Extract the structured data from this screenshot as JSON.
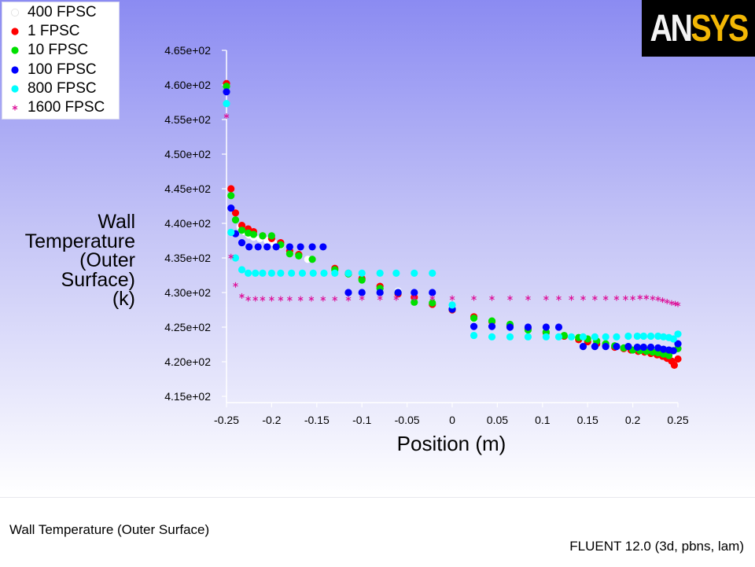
{
  "logo": {
    "text_main": "AN",
    "text_accent": "SYS"
  },
  "footer": {
    "title": "Wall Temperature (Outer Surface)",
    "solver": "FLUENT 12.0 (3d, pbns, lam)"
  },
  "chart_data": {
    "type": "scatter",
    "title": "",
    "xlabel": "Position (m)",
    "ylabel_lines": [
      "Wall",
      "Temperature",
      "(Outer",
      "Surface)",
      "(k)"
    ],
    "xlim": [
      -0.25,
      0.25
    ],
    "ylim": [
      415,
      465
    ],
    "x_ticks": [
      -0.25,
      -0.2,
      -0.15,
      -0.1,
      -0.05,
      0,
      0.05,
      0.1,
      0.15,
      0.2,
      0.25
    ],
    "x_tick_labels": [
      "-0.25",
      "-0.2",
      "-0.15",
      "-0.1",
      "-0.05",
      "0",
      "0.05",
      "0.1",
      "0.15",
      "0.2",
      "0.25"
    ],
    "y_ticks": [
      415,
      420,
      425,
      430,
      435,
      440,
      445,
      450,
      455,
      460,
      465
    ],
    "y_tick_labels": [
      "4.15e+02",
      "4.20e+02",
      "4.25e+02",
      "4.30e+02",
      "4.35e+02",
      "4.40e+02",
      "4.45e+02",
      "4.50e+02",
      "4.55e+02",
      "4.60e+02",
      "4.65e+02"
    ],
    "grid": false,
    "legend_position": "top-left",
    "series": [
      {
        "name": "400 FPSC",
        "color": "#ffffff",
        "marker": "circle",
        "x": [
          -0.25,
          -0.245,
          -0.24,
          -0.235,
          -0.23,
          -0.225,
          -0.22,
          -0.213,
          -0.205,
          -0.198,
          -0.19,
          -0.18,
          -0.17,
          -0.16,
          -0.13,
          -0.115,
          -0.1,
          -0.08,
          -0.06,
          -0.042,
          -0.022,
          0,
          0.024,
          0.044,
          0.064,
          0.084,
          0.104,
          0.124,
          0.138,
          0.15,
          0.16,
          0.17,
          0.18,
          0.19,
          0.2,
          0.208,
          0.215,
          0.222,
          0.228,
          0.234,
          0.24,
          0.245,
          0.25
        ],
        "y": [
          460,
          445,
          441.5,
          439.5,
          438.8,
          438.3,
          438,
          437.8,
          437.5,
          437.2,
          436.8,
          435.8,
          435.3,
          434.8,
          433.5,
          432.8,
          431.8,
          430.8,
          430.2,
          429.3,
          428.5,
          427.7,
          426.2,
          425.8,
          425.2,
          424.8,
          424.5,
          423.8,
          423.4,
          423.1,
          422.8,
          422.5,
          422.2,
          422,
          421.7,
          421.5,
          421.4,
          421.3,
          421.2,
          421,
          420.8,
          420.5,
          420.3
        ]
      },
      {
        "name": "1 FPSC",
        "color": "#ff0000",
        "marker": "circle",
        "x": [
          -0.25,
          -0.245,
          -0.24,
          -0.233,
          -0.226,
          -0.22,
          -0.21,
          -0.2,
          -0.19,
          -0.18,
          -0.17,
          -0.13,
          -0.115,
          -0.1,
          -0.08,
          -0.06,
          -0.042,
          -0.022,
          0,
          0.024,
          0.044,
          0.064,
          0.084,
          0.104,
          0.124,
          0.14,
          0.15,
          0.16,
          0.17,
          0.18,
          0.19,
          0.198,
          0.206,
          0.213,
          0.22,
          0.227,
          0.233,
          0.238,
          0.243,
          0.246,
          0.25
        ],
        "y": [
          460.2,
          445,
          441.5,
          439.7,
          439.2,
          438.8,
          438.2,
          437.8,
          437.2,
          436,
          435.5,
          433.5,
          432.8,
          432,
          430.9,
          429.8,
          429.3,
          428.3,
          427.5,
          426.5,
          425.8,
          425.2,
          424.8,
          424.2,
          423.7,
          423.2,
          422.9,
          422.6,
          422.3,
          422.1,
          421.9,
          421.7,
          421.5,
          421.4,
          421.2,
          421,
          420.8,
          420.5,
          420.1,
          419.5,
          420.4
        ]
      },
      {
        "name": "10 FPSC",
        "color": "#00e000",
        "marker": "circle",
        "x": [
          -0.25,
          -0.245,
          -0.24,
          -0.233,
          -0.226,
          -0.22,
          -0.21,
          -0.2,
          -0.19,
          -0.18,
          -0.17,
          -0.155,
          -0.13,
          -0.115,
          -0.1,
          -0.08,
          -0.06,
          -0.042,
          -0.022,
          0,
          0.024,
          0.044,
          0.064,
          0.084,
          0.104,
          0.124,
          0.14,
          0.15,
          0.16,
          0.17,
          0.18,
          0.19,
          0.2,
          0.208,
          0.215,
          0.222,
          0.228,
          0.234,
          0.24,
          0.245,
          0.25
        ],
        "y": [
          459.8,
          444,
          440.5,
          439,
          438.6,
          438.4,
          438.2,
          438.2,
          436.9,
          435.6,
          435.3,
          434.8,
          433.3,
          432.7,
          431.8,
          430.6,
          430,
          428.6,
          428.5,
          427.6,
          426.3,
          425.9,
          425.4,
          424.6,
          424.3,
          423.8,
          423.5,
          423.3,
          423,
          422.6,
          422.3,
          422,
          421.7,
          421.6,
          421.5,
          421.4,
          421.3,
          421.1,
          420.9,
          421.6,
          421.9
        ]
      },
      {
        "name": "100 FPSC",
        "color": "#0000ff",
        "marker": "circle",
        "x": [
          -0.25,
          -0.245,
          -0.24,
          -0.233,
          -0.225,
          -0.215,
          -0.205,
          -0.195,
          -0.18,
          -0.168,
          -0.155,
          -0.143,
          -0.115,
          -0.1,
          -0.08,
          -0.06,
          -0.042,
          -0.022,
          0,
          0.024,
          0.044,
          0.064,
          0.084,
          0.104,
          0.118,
          0.145,
          0.158,
          0.17,
          0.182,
          0.195,
          0.205,
          0.212,
          0.22,
          0.228,
          0.234,
          0.24,
          0.245,
          0.25
        ],
        "y": [
          459,
          442.2,
          438.5,
          437.2,
          436.6,
          436.6,
          436.6,
          436.6,
          436.6,
          436.6,
          436.6,
          436.6,
          430,
          430,
          430,
          430,
          430,
          430,
          427.6,
          425.1,
          425.1,
          425,
          425,
          425,
          425,
          422.2,
          422.2,
          422.2,
          422.2,
          422.2,
          422.1,
          422.1,
          422.1,
          422,
          421.8,
          421.7,
          421.6,
          422.6
        ]
      },
      {
        "name": "800 FPSC",
        "color": "#00ffff",
        "marker": "circle",
        "x": [
          -0.25,
          -0.245,
          -0.24,
          -0.233,
          -0.226,
          -0.218,
          -0.21,
          -0.2,
          -0.19,
          -0.178,
          -0.166,
          -0.154,
          -0.142,
          -0.13,
          -0.115,
          -0.1,
          -0.08,
          -0.062,
          -0.042,
          -0.022,
          0,
          0.024,
          0.044,
          0.064,
          0.084,
          0.104,
          0.118,
          0.132,
          0.145,
          0.158,
          0.17,
          0.182,
          0.195,
          0.205,
          0.212,
          0.22,
          0.228,
          0.234,
          0.24,
          0.245,
          0.25
        ],
        "y": [
          457.3,
          438.7,
          435,
          433.3,
          432.8,
          432.8,
          432.8,
          432.8,
          432.8,
          432.8,
          432.8,
          432.8,
          432.8,
          432.8,
          432.8,
          432.8,
          432.8,
          432.8,
          432.8,
          432.8,
          428.2,
          423.8,
          423.6,
          423.6,
          423.6,
          423.6,
          423.6,
          423.6,
          423.6,
          423.6,
          423.6,
          423.6,
          423.7,
          423.7,
          423.7,
          423.7,
          423.7,
          423.6,
          423.5,
          423.3,
          424
        ]
      },
      {
        "name": "1600 FPSC",
        "color": "#dd1199",
        "marker": "asterisk",
        "x": [
          -0.25,
          -0.245,
          -0.24,
          -0.233,
          -0.226,
          -0.218,
          -0.21,
          -0.2,
          -0.19,
          -0.18,
          -0.168,
          -0.156,
          -0.143,
          -0.13,
          -0.115,
          -0.1,
          -0.08,
          -0.062,
          -0.042,
          -0.022,
          0,
          0.024,
          0.044,
          0.064,
          0.084,
          0.104,
          0.118,
          0.132,
          0.145,
          0.158,
          0.17,
          0.182,
          0.192,
          0.2,
          0.208,
          0.215,
          0.222,
          0.228,
          0.233,
          0.238,
          0.243,
          0.247,
          0.25
        ],
        "y": [
          455.5,
          435.2,
          431.1,
          429.5,
          429.1,
          429.1,
          429.1,
          429.1,
          429.1,
          429.1,
          429.1,
          429.1,
          429.1,
          429.1,
          429.1,
          429.2,
          429.2,
          429.2,
          429.2,
          429.2,
          429.2,
          429.2,
          429.2,
          429.2,
          429.2,
          429.2,
          429.2,
          429.2,
          429.2,
          429.2,
          429.2,
          429.2,
          429.2,
          429.2,
          429.3,
          429.3,
          429.2,
          429.1,
          428.9,
          428.7,
          428.5,
          428.4,
          428.3
        ]
      }
    ]
  }
}
